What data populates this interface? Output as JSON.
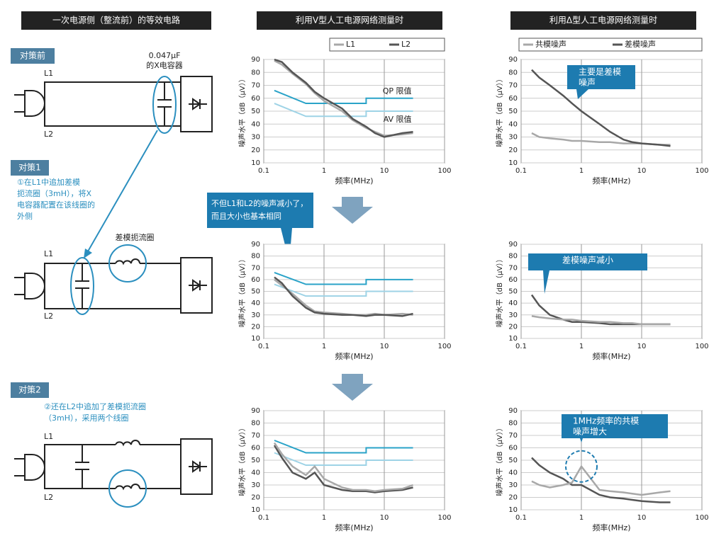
{
  "headers": [
    "一次电源侧（整流前）的等效电路",
    "利用V型人工电源网络测量时",
    "利用Δ型人工电源网络测量时"
  ],
  "circuits": [
    {
      "tag": "对策前",
      "note": [
        "0.047μF",
        "的X电容器"
      ],
      "l1": "L1",
      "l2": "L2"
    },
    {
      "tag": "对策1",
      "desc": [
        "①在L1中追加差模",
        "扼流圈（3mH），将X",
        "电容器配置在该线圈的",
        "外侧"
      ],
      "coil": "差模扼流圈",
      "l1": "L1",
      "l2": "L2"
    },
    {
      "tag": "对策2",
      "desc": [
        "②还在L2中追加了差模扼流圈",
        "（3mH），采用两个线圈"
      ],
      "l1": "L1",
      "l2": "L2"
    }
  ],
  "callout_v": [
    "不但L1和L2的噪声减小了，",
    "而且大小也基本相同"
  ],
  "chart_data": [
    {
      "type": "line",
      "xlog": true,
      "xlabel": "频率(MHz)",
      "ylabel": "噪声水平（dB（μV））",
      "xlim": [
        0.1,
        100
      ],
      "xticks": [
        0.1,
        1,
        10,
        100
      ],
      "ylim": [
        10,
        90
      ],
      "yticks": [
        10,
        20,
        30,
        40,
        50,
        60,
        70,
        80,
        90
      ],
      "grid": true,
      "legend": "upper-right",
      "x": [
        0.15,
        0.2,
        0.3,
        0.5,
        0.7,
        1,
        2,
        3,
        5,
        7,
        10,
        20,
        30
      ],
      "series": [
        {
          "name": "L1",
          "color": "#a8a8a8",
          "values": [
            89,
            86,
            79,
            71,
            64,
            58,
            50,
            43,
            37,
            34,
            31,
            32,
            33
          ]
        },
        {
          "name": "L2",
          "color": "#555555",
          "values": [
            90,
            88,
            80,
            72,
            65,
            60,
            52,
            44,
            38,
            33,
            30,
            33,
            34
          ]
        }
      ],
      "limits": [
        {
          "label": "QP 限值",
          "color": "#2aa3c8",
          "x": [
            0.15,
            0.5,
            5,
            5,
            30
          ],
          "values": [
            66,
            56,
            56,
            60,
            60
          ]
        },
        {
          "label": "AV 限值",
          "color": "#9ed3e6",
          "x": [
            0.15,
            0.5,
            5,
            5,
            30
          ],
          "values": [
            56,
            46,
            46,
            50,
            50
          ]
        }
      ]
    },
    {
      "type": "line",
      "xlog": true,
      "xlabel": "频率(MHz)",
      "ylabel": "噪声水平（dB（μV））",
      "xlim": [
        0.1,
        100
      ],
      "xticks": [
        0.1,
        1,
        10,
        100
      ],
      "ylim": [
        10,
        90
      ],
      "yticks": [
        10,
        20,
        30,
        40,
        50,
        60,
        70,
        80,
        90
      ],
      "grid": true,
      "x": [
        0.15,
        0.2,
        0.3,
        0.5,
        0.7,
        1,
        2,
        3,
        5,
        7,
        10,
        20,
        30
      ],
      "series": [
        {
          "color": "#a8a8a8",
          "values": [
            60,
            55,
            48,
            38,
            33,
            32,
            31,
            30,
            30,
            31,
            30,
            31,
            30
          ]
        },
        {
          "color": "#555555",
          "values": [
            62,
            57,
            46,
            36,
            32,
            31,
            30,
            30,
            29,
            30,
            30,
            29,
            31
          ]
        }
      ],
      "limits": [
        {
          "color": "#2aa3c8",
          "x": [
            0.15,
            0.5,
            5,
            5,
            30
          ],
          "values": [
            66,
            56,
            56,
            60,
            60
          ]
        },
        {
          "color": "#9ed3e6",
          "x": [
            0.15,
            0.5,
            5,
            5,
            30
          ],
          "values": [
            56,
            46,
            46,
            50,
            50
          ]
        }
      ]
    },
    {
      "type": "line",
      "xlog": true,
      "xlabel": "频率(MHz)",
      "ylabel": "噪声水平（dB（μV））",
      "xlim": [
        0.1,
        100
      ],
      "xticks": [
        0.1,
        1,
        10,
        100
      ],
      "ylim": [
        10,
        90
      ],
      "yticks": [
        10,
        20,
        30,
        40,
        50,
        60,
        70,
        80,
        90
      ],
      "grid": true,
      "x": [
        0.15,
        0.2,
        0.3,
        0.5,
        0.7,
        1,
        2,
        3,
        5,
        7,
        10,
        20,
        30
      ],
      "series": [
        {
          "color": "#555555",
          "values": [
            62,
            52,
            40,
            35,
            40,
            30,
            26,
            25,
            25,
            24,
            25,
            26,
            28
          ]
        },
        {
          "color": "#a8a8a8",
          "values": [
            64,
            55,
            45,
            38,
            45,
            35,
            28,
            26,
            26,
            25,
            26,
            27,
            30
          ]
        }
      ],
      "limits": [
        {
          "color": "#2aa3c8",
          "x": [
            0.15,
            0.5,
            5,
            5,
            30
          ],
          "values": [
            66,
            56,
            56,
            60,
            60
          ]
        },
        {
          "color": "#9ed3e6",
          "x": [
            0.15,
            0.5,
            5,
            5,
            30
          ],
          "values": [
            56,
            46,
            46,
            50,
            50
          ]
        }
      ]
    },
    {
      "type": "line",
      "xlog": true,
      "xlabel": "频率(MHz)",
      "ylabel": "噪声水平（dB（μV））",
      "xlim": [
        0.1,
        100
      ],
      "xticks": [
        0.1,
        1,
        10,
        100
      ],
      "ylim": [
        10,
        90
      ],
      "yticks": [
        10,
        20,
        30,
        40,
        50,
        60,
        70,
        80,
        90
      ],
      "grid": true,
      "legend": "upper-right",
      "callout": [
        "主要是差模",
        "噪声"
      ],
      "x": [
        0.15,
        0.2,
        0.3,
        0.5,
        0.7,
        1,
        2,
        3,
        5,
        7,
        10,
        20,
        30
      ],
      "series": [
        {
          "name": "共模噪声",
          "color": "#a8a8a8",
          "values": [
            33,
            30,
            29,
            28,
            27,
            27,
            26,
            26,
            25,
            25,
            25,
            24,
            24
          ]
        },
        {
          "name": "差模噪声",
          "color": "#555555",
          "values": [
            82,
            76,
            70,
            62,
            56,
            50,
            40,
            34,
            28,
            26,
            25,
            24,
            23
          ]
        }
      ]
    },
    {
      "type": "line",
      "xlog": true,
      "xlabel": "频率(MHz)",
      "ylabel": "噪声水平（dB（μV））",
      "xlim": [
        0.1,
        100
      ],
      "xticks": [
        0.1,
        1,
        10,
        100
      ],
      "ylim": [
        10,
        90
      ],
      "yticks": [
        10,
        20,
        30,
        40,
        50,
        60,
        70,
        80,
        90
      ],
      "grid": true,
      "callout": [
        "差模噪声减小"
      ],
      "x": [
        0.15,
        0.2,
        0.3,
        0.5,
        0.7,
        1,
        2,
        3,
        5,
        7,
        10,
        20,
        30
      ],
      "series": [
        {
          "color": "#555555",
          "values": [
            47,
            38,
            30,
            26,
            24,
            24,
            23,
            22,
            22,
            22,
            22,
            22,
            22
          ]
        },
        {
          "color": "#a8a8a8",
          "values": [
            29,
            28,
            27,
            26,
            26,
            25,
            24,
            24,
            23,
            23,
            22,
            22,
            22
          ]
        }
      ]
    },
    {
      "type": "line",
      "xlog": true,
      "xlabel": "频率(MHz)",
      "ylabel": "噪声水平（dB（μV））",
      "xlim": [
        0.1,
        100
      ],
      "xticks": [
        0.1,
        1,
        10,
        100
      ],
      "ylim": [
        10,
        90
      ],
      "yticks": [
        10,
        20,
        30,
        40,
        50,
        60,
        70,
        80,
        90
      ],
      "grid": true,
      "callout": [
        "1MHz频率的共模",
        "噪声增大"
      ],
      "x": [
        0.15,
        0.2,
        0.3,
        0.5,
        0.7,
        1,
        2,
        3,
        5,
        7,
        10,
        20,
        30
      ],
      "series": [
        {
          "color": "#555555",
          "values": [
            52,
            46,
            40,
            35,
            30,
            30,
            22,
            20,
            19,
            18,
            17,
            16,
            16
          ]
        },
        {
          "color": "#a8a8a8",
          "values": [
            33,
            30,
            28,
            30,
            32,
            45,
            26,
            25,
            24,
            23,
            22,
            24,
            25
          ]
        }
      ]
    }
  ]
}
